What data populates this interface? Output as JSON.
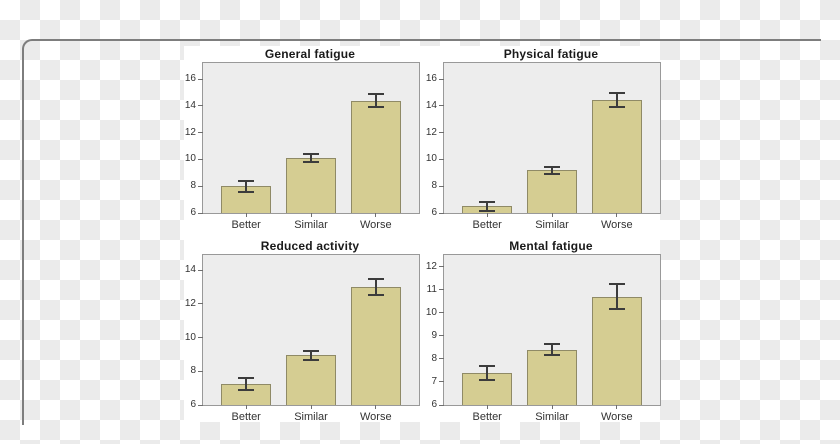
{
  "colors": {
    "bar_fill": "#d5cd92",
    "bar_border": "#8f8a66",
    "plot_bg": "#ededed",
    "plot_border": "#999999",
    "error_bar": "#3c3c3c",
    "checker_dark": "#ebebeb",
    "card_border": "#7d7d7d",
    "figure_bg": "#ffffff",
    "title_text": "#1a1a1a",
    "tick_text": "#333333"
  },
  "chart_data": [
    {
      "type": "bar",
      "title": "General fatigue",
      "categories": [
        "Better",
        "Similar",
        "Worse"
      ],
      "values": [
        8.0,
        10.1,
        14.4
      ],
      "errors": [
        0.4,
        0.3,
        0.5
      ],
      "yticks": [
        6,
        8,
        10,
        12,
        14,
        16
      ],
      "ylim": [
        6,
        17.2
      ],
      "xlabel": "",
      "ylabel": "",
      "grid": false,
      "legend": "none"
    },
    {
      "type": "bar",
      "title": "Physical fatigue",
      "categories": [
        "Better",
        "Similar",
        "Worse"
      ],
      "values": [
        6.5,
        9.2,
        14.45
      ],
      "errors": [
        0.35,
        0.25,
        0.5
      ],
      "yticks": [
        6,
        8,
        10,
        12,
        14,
        16
      ],
      "ylim": [
        6,
        17.2
      ],
      "xlabel": "",
      "ylabel": "",
      "grid": false,
      "legend": "none"
    },
    {
      "type": "bar",
      "title": "Reduced activity",
      "categories": [
        "Better",
        "Similar",
        "Worse"
      ],
      "values": [
        7.25,
        8.95,
        13.0
      ],
      "errors": [
        0.33,
        0.25,
        0.45
      ],
      "yticks": [
        6,
        8,
        10,
        12,
        14
      ],
      "ylim": [
        6,
        14.9
      ],
      "xlabel": "",
      "ylabel": "",
      "grid": false,
      "legend": "none"
    },
    {
      "type": "bar",
      "title": "Mental fatigue",
      "categories": [
        "Better",
        "Similar",
        "Worse"
      ],
      "values": [
        7.4,
        8.4,
        10.7
      ],
      "errors": [
        0.3,
        0.25,
        0.55
      ],
      "yticks": [
        6,
        7,
        8,
        9,
        10,
        11,
        12
      ],
      "ylim": [
        6,
        12.5
      ],
      "xlabel": "",
      "ylabel": "",
      "grid": false,
      "legend": "none"
    }
  ]
}
